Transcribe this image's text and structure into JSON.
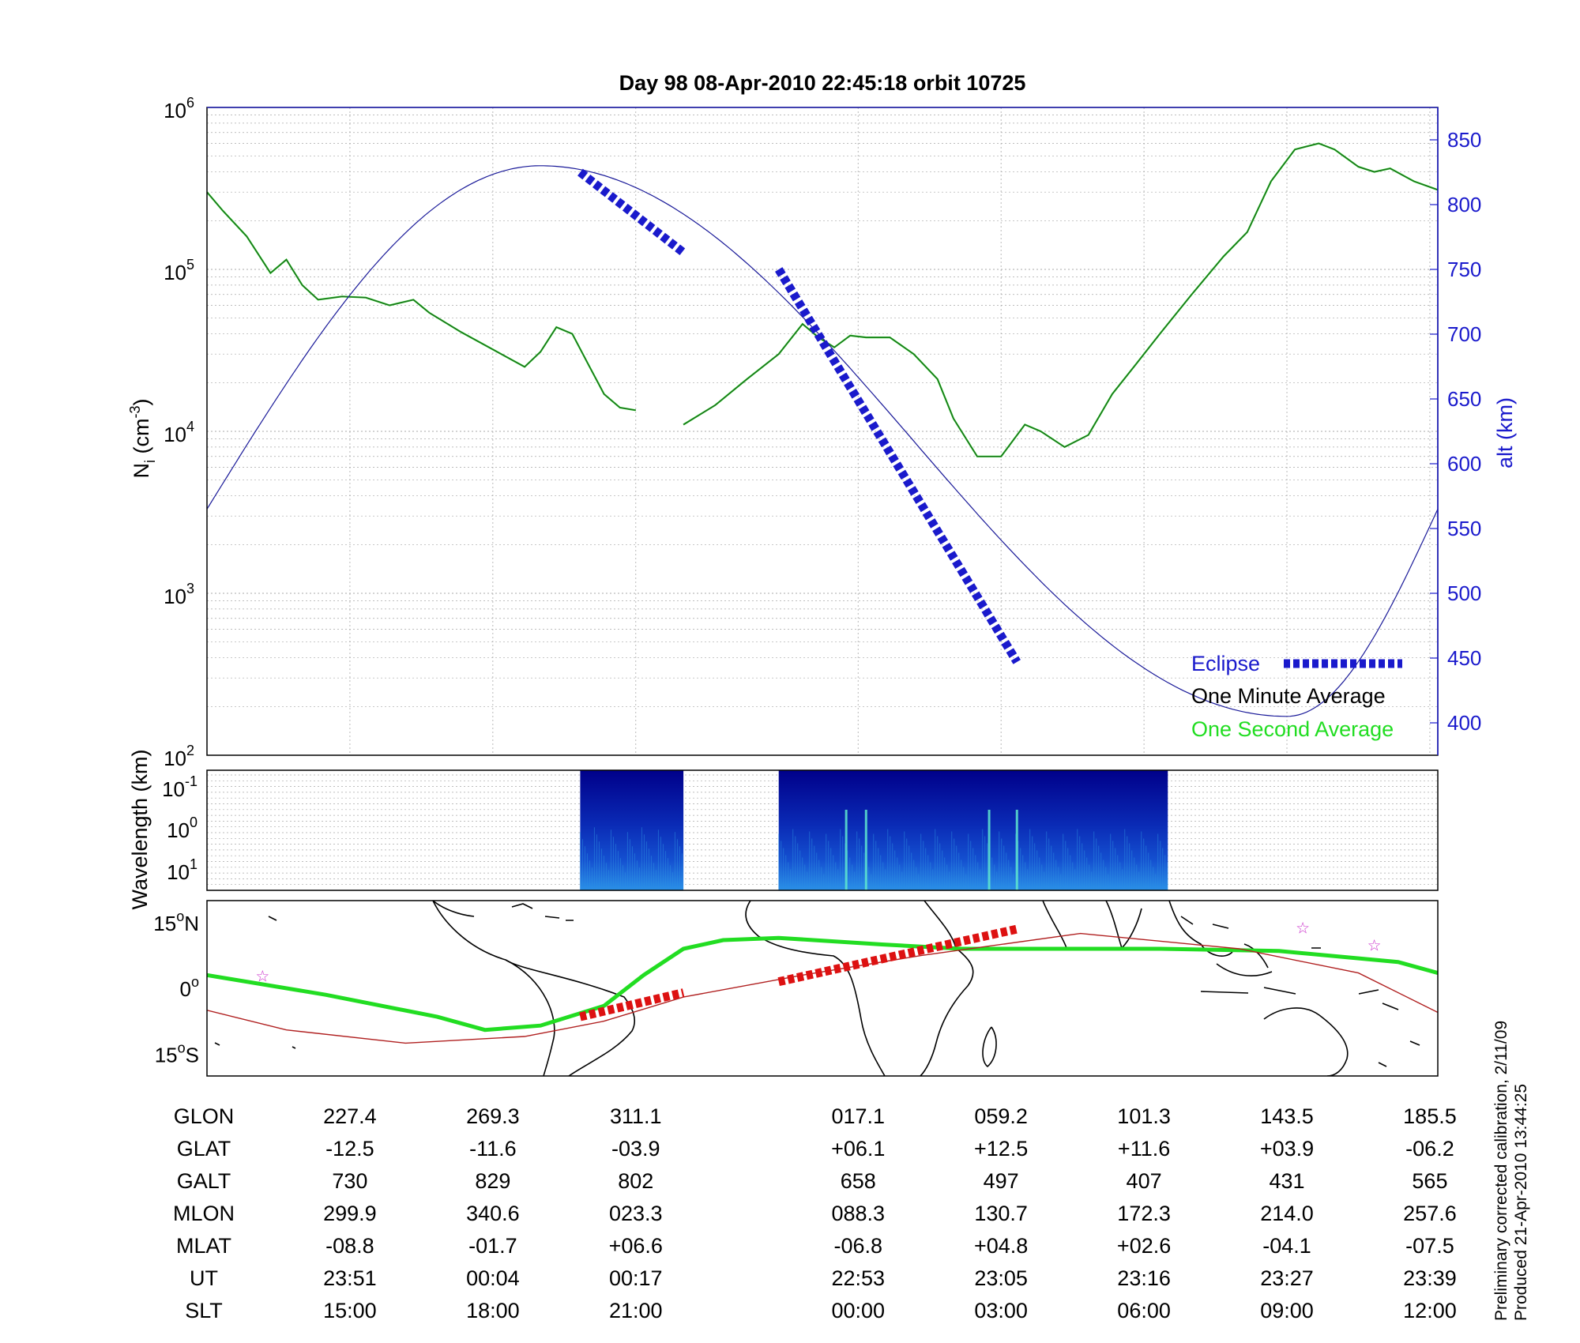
{
  "chart_data": [
    {
      "type": "line",
      "title": "Day 98  08-Apr-2010 22:45:18   orbit 10725",
      "ylabel_left": "N",
      "ylabel_left_sub": "i",
      "ylabel_left_unit": " (cm",
      "ylabel_left_sup": "-3",
      "ylabel_left_close": ")",
      "ylabel_right": "alt (km)",
      "y_left_scale": "log",
      "ylim_left": [
        100,
        1000000
      ],
      "ylim_right": [
        375,
        875
      ],
      "y_left_ticks": [
        {
          "base": "10",
          "exp": "2"
        },
        {
          "base": "10",
          "exp": "3"
        },
        {
          "base": "10",
          "exp": "4"
        },
        {
          "base": "10",
          "exp": "5"
        },
        {
          "base": "10",
          "exp": "6"
        }
      ],
      "y_right_ticks": [
        "400",
        "450",
        "500",
        "550",
        "600",
        "650",
        "700",
        "750",
        "800",
        "850"
      ],
      "grid": true,
      "legend_placement": "bottom-right",
      "legend": [
        {
          "label": "Eclipse",
          "color": "#1a1acc"
        },
        {
          "label": "One Minute Average",
          "color": "#000000"
        },
        {
          "label": "One Second Average",
          "color": "#22dd22"
        }
      ],
      "series": [
        {
          "name": "One Minute Average",
          "color": "#1e6b1e",
          "segments": [
            [
              [
                0,
                300000
              ],
              [
                0.02,
                230000
              ],
              [
                0.05,
                160000
              ],
              [
                0.08,
                95000
              ],
              [
                0.1,
                115000
              ],
              [
                0.12,
                80000
              ],
              [
                0.14,
                65000
              ],
              [
                0.17,
                68000
              ],
              [
                0.2,
                67000
              ],
              [
                0.23,
                60000
              ],
              [
                0.26,
                65000
              ],
              [
                0.28,
                54000
              ],
              [
                0.32,
                41000
              ],
              [
                0.36,
                32000
              ],
              [
                0.4,
                25000
              ],
              [
                0.42,
                31000
              ],
              [
                0.44,
                44000
              ],
              [
                0.46,
                40000
              ],
              [
                0.48,
                26000
              ],
              [
                0.5,
                17000
              ],
              [
                0.52,
                14000
              ],
              [
                0.54,
                13500
              ]
            ],
            [
              [
                0.6,
                11000
              ],
              [
                0.64,
                14500
              ],
              [
                0.68,
                21000
              ],
              [
                0.72,
                30000
              ],
              [
                0.75,
                46000
              ],
              [
                0.77,
                38000
              ],
              [
                0.79,
                33000
              ],
              [
                0.81,
                39000
              ],
              [
                0.83,
                38000
              ],
              [
                0.86,
                38000
              ],
              [
                0.89,
                30000
              ],
              [
                0.92,
                21000
              ],
              [
                0.94,
                12000
              ],
              [
                0.97,
                7000
              ],
              [
                1.0,
                7000
              ],
              [
                1.03,
                11000
              ],
              [
                1.05,
                10000
              ],
              [
                1.08,
                8000
              ],
              [
                1.11,
                9500
              ],
              [
                1.14,
                17000
              ],
              [
                1.17,
                26000
              ],
              [
                1.2,
                40000
              ],
              [
                1.24,
                70000
              ],
              [
                1.28,
                120000
              ],
              [
                1.31,
                170000
              ],
              [
                1.34,
                350000
              ],
              [
                1.37,
                550000
              ],
              [
                1.4,
                600000
              ],
              [
                1.42,
                550000
              ],
              [
                1.45,
                430000
              ],
              [
                1.47,
                400000
              ],
              [
                1.49,
                420000
              ],
              [
                1.52,
                350000
              ],
              [
                1.55,
                310000
              ]
            ]
          ]
        },
        {
          "name": "alt",
          "color": "#1a1a99",
          "x": [
            0,
            0.42,
            1.36,
            1.55
          ],
          "y": [
            565,
            830,
            405,
            565
          ]
        },
        {
          "name": "Eclipse",
          "color": "#1a1acc",
          "segments": [
            [
              [
                0.47,
                825
              ],
              [
                0.6,
                763
              ]
            ],
            [
              [
                0.72,
                750
              ],
              [
                1.02,
                447
              ]
            ]
          ]
        }
      ]
    },
    {
      "type": "heatmap",
      "ylabel": "Wavelength (km)",
      "y_ticks": [
        {
          "base": "10",
          "exp": "-1"
        },
        {
          "base": "10",
          "exp": "0"
        },
        {
          "base": "10",
          "exp": "1"
        }
      ],
      "data_blocks": [
        [
          0.47,
          0.6
        ],
        [
          0.72,
          1.21
        ]
      ]
    },
    {
      "type": "map",
      "y_ticks": [
        {
          "deg": "15",
          "hemi": "N"
        },
        {
          "deg": "0",
          "hemi": ""
        },
        {
          "deg": "15",
          "hemi": "S"
        }
      ],
      "ylim": [
        -20,
        20
      ],
      "paths": [
        {
          "name": "magnetic-equator",
          "color": "#22dd22",
          "x": [
            0,
            0.15,
            0.29,
            0.35,
            0.42,
            0.5,
            0.55,
            0.6,
            0.65,
            0.72,
            0.85,
            0.95,
            1.05,
            1.2,
            1.35,
            1.5,
            1.55
          ],
          "y": [
            3,
            -1.5,
            -6.5,
            -9.5,
            -8.5,
            -4,
            3,
            9,
            11,
            11.5,
            10,
            9,
            9,
            9,
            8.5,
            6,
            3.5
          ]
        },
        {
          "name": "orbit-track",
          "color": "#b02020",
          "x": [
            0,
            0.1,
            0.25,
            0.4,
            0.5,
            0.6,
            0.75,
            0.9,
            1.1,
            1.3,
            1.45,
            1.55
          ],
          "y": [
            -5,
            -9.5,
            -12.5,
            -11,
            -7.5,
            -2,
            3,
            7.5,
            12.5,
            9,
            3.5,
            -5.5
          ]
        },
        {
          "name": "eclipse-track",
          "color": "#dd1111",
          "segments": [
            [
              [
                0.47,
                -6.5
              ],
              [
                0.6,
                -1
              ]
            ],
            [
              [
                0.72,
                1.5
              ],
              [
                1.02,
                13.5
              ]
            ]
          ]
        }
      ],
      "stars_x": [
        0.07,
        1.38,
        1.47
      ],
      "stars_y": [
        3,
        14,
        10
      ]
    }
  ],
  "table": {
    "x_positions": [
      0.18,
      0.36,
      0.54,
      0.82,
      1.0,
      1.18,
      1.36,
      1.54
    ],
    "rows": [
      {
        "label": "GLON",
        "values": [
          "227.4",
          "269.3",
          "311.1",
          "017.1",
          "059.2",
          "101.3",
          "143.5",
          "185.5"
        ]
      },
      {
        "label": "GLAT",
        "values": [
          "-12.5",
          "-11.6",
          "-03.9",
          "+06.1",
          "+12.5",
          "+11.6",
          "+03.9",
          "-06.2"
        ]
      },
      {
        "label": "GALT",
        "values": [
          "730",
          "829",
          "802",
          "658",
          "497",
          "407",
          "431",
          "565"
        ]
      },
      {
        "label": "MLON",
        "values": [
          "299.9",
          "340.6",
          "023.3",
          "088.3",
          "130.7",
          "172.3",
          "214.0",
          "257.6"
        ]
      },
      {
        "label": "MLAT",
        "values": [
          "-08.8",
          "-01.7",
          "+06.6",
          "-06.8",
          "+04.8",
          "+02.6",
          "-04.1",
          "-07.5"
        ]
      },
      {
        "label": "UT",
        "values": [
          "23:51",
          "00:04",
          "00:17",
          "22:53",
          "23:05",
          "23:16",
          "23:27",
          "23:39"
        ]
      },
      {
        "label": "SLT",
        "values": [
          "15:00",
          "18:00",
          "21:00",
          "00:00",
          "03:00",
          "06:00",
          "09:00",
          "12:00"
        ]
      }
    ]
  },
  "footnote": {
    "line1": "Preliminary corrected calibration, 2/11/09",
    "line2": "Produced 21-Apr-2010 13:44:25"
  },
  "colors": {
    "axis": "#000000",
    "right_axis": "#1a1acc",
    "grid": "#9a9a9a"
  }
}
